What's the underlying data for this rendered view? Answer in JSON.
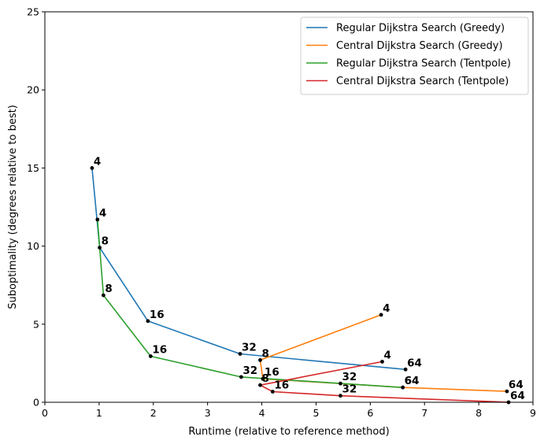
{
  "chart_data": {
    "type": "line",
    "title": "",
    "xlabel": "Runtime (relative to reference method)",
    "ylabel": "Suboptimality (degrees relative to best)",
    "xlim": [
      0,
      9
    ],
    "ylim": [
      0,
      25
    ],
    "xticks": [
      "0",
      "1",
      "2",
      "3",
      "4",
      "5",
      "6",
      "7",
      "8",
      "9"
    ],
    "yticks": [
      "0",
      "5",
      "10",
      "15",
      "20",
      "25"
    ],
    "legend_position": "top-right",
    "grid": false,
    "series": [
      {
        "name": "Regular Dijkstra Search (Greedy)",
        "color": "#1f77b4",
        "points": [
          {
            "x": 0.87,
            "y": 15.0,
            "label": "4"
          },
          {
            "x": 1.01,
            "y": 9.9,
            "label": "8"
          },
          {
            "x": 1.9,
            "y": 5.2,
            "label": "16"
          },
          {
            "x": 3.6,
            "y": 3.1,
            "label": "32"
          },
          {
            "x": 6.65,
            "y": 2.1,
            "label": "64"
          }
        ]
      },
      {
        "name": "Central Dijkstra Search (Greedy)",
        "color": "#ff7f0e",
        "points": [
          {
            "x": 6.2,
            "y": 5.6,
            "label": "4"
          },
          {
            "x": 3.97,
            "y": 2.7,
            "label": "8"
          },
          {
            "x": 4.02,
            "y": 1.5,
            "label": "16"
          },
          {
            "x": 5.45,
            "y": 1.2,
            "label": "32"
          },
          {
            "x": 6.6,
            "y": 0.95,
            "label": "64"
          },
          {
            "x": 8.52,
            "y": 0.7,
            "label": "64"
          }
        ]
      },
      {
        "name": "Regular Dijkstra Search (Tentpole)",
        "color": "#2ca02c",
        "points": [
          {
            "x": 0.97,
            "y": 11.7,
            "label": "4"
          },
          {
            "x": 1.08,
            "y": 6.85,
            "label": "8"
          },
          {
            "x": 1.95,
            "y": 2.95,
            "label": "16"
          },
          {
            "x": 3.62,
            "y": 1.62,
            "label": "32"
          },
          {
            "x": 6.6,
            "y": 0.95,
            "label": "64"
          }
        ]
      },
      {
        "name": "Central Dijkstra Search (Tentpole)",
        "color": "#d62728",
        "points": [
          {
            "x": 6.22,
            "y": 2.6,
            "label": "4"
          },
          {
            "x": 3.97,
            "y": 1.1,
            "label": "8"
          },
          {
            "x": 4.2,
            "y": 0.68,
            "label": "16"
          },
          {
            "x": 5.45,
            "y": 0.42,
            "label": "32"
          },
          {
            "x": 8.55,
            "y": 0.0,
            "label": "64"
          }
        ]
      }
    ]
  }
}
